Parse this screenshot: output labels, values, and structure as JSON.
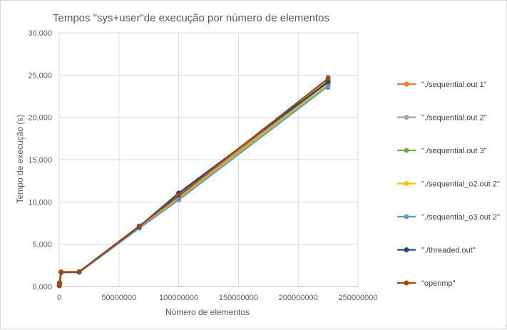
{
  "chart_data": {
    "type": "line",
    "title": "Tempos \"sys+user\"de execução por número  de elementos",
    "xlabel": "Número  de elementos",
    "ylabel": "Tempo  de execução (s)",
    "xlim": [
      0,
      250000000
    ],
    "ylim": [
      0,
      30
    ],
    "x_ticks": [
      0,
      50000000,
      100000000,
      150000000,
      200000000,
      250000000
    ],
    "x_tick_labels": [
      "0",
      "50000000",
      "100000000",
      "150000000",
      "200000000",
      "250000000"
    ],
    "y_ticks": [
      0,
      5,
      10,
      15,
      20,
      25,
      30
    ],
    "y_tick_labels": [
      "0,000",
      "5,000",
      "10,000",
      "15,000",
      "20,000",
      "25,000",
      "30,000"
    ],
    "grid": "vertical and horizontal",
    "legend_position": "right",
    "x": [
      100000,
      400000,
      1600000,
      16700000,
      67000000,
      100000000,
      225000000
    ],
    "series": [
      {
        "name": "\"./sequential.out 1\"",
        "color": "#ED7D31",
        "values": [
          0.1,
          0.42,
          1.68,
          1.72,
          7.05,
          10.6,
          24.3
        ]
      },
      {
        "name": "\"./sequential.out 2\"",
        "color": "#A5A5A5",
        "values": [
          0.1,
          0.42,
          1.68,
          1.7,
          7.0,
          10.45,
          24.1
        ]
      },
      {
        "name": "\"./sequential.out 3\"",
        "color": "#70AD47",
        "values": [
          0.1,
          0.42,
          1.68,
          1.7,
          7.0,
          10.4,
          24.0
        ]
      },
      {
        "name": "\"./sequential_o2.out 2\"",
        "color": "#FFC000",
        "values": [
          0.1,
          0.42,
          1.68,
          1.7,
          6.98,
          10.35,
          23.9
        ]
      },
      {
        "name": "\"./sequential_o3.out 2\"",
        "color": "#5B9BD5",
        "values": [
          0.1,
          0.41,
          1.65,
          1.68,
          6.9,
          10.25,
          23.7
        ],
        "error": 0.35
      },
      {
        "name": "\"./threaded.out\"",
        "color": "#264478",
        "values": [
          0.1,
          0.42,
          1.7,
          1.72,
          7.1,
          11.05,
          24.2
        ]
      },
      {
        "name": "\"openmp\"",
        "color": "#9E480E",
        "values": [
          0.1,
          0.43,
          1.72,
          1.75,
          7.15,
          10.75,
          24.6
        ],
        "error": 0.3
      }
    ]
  }
}
